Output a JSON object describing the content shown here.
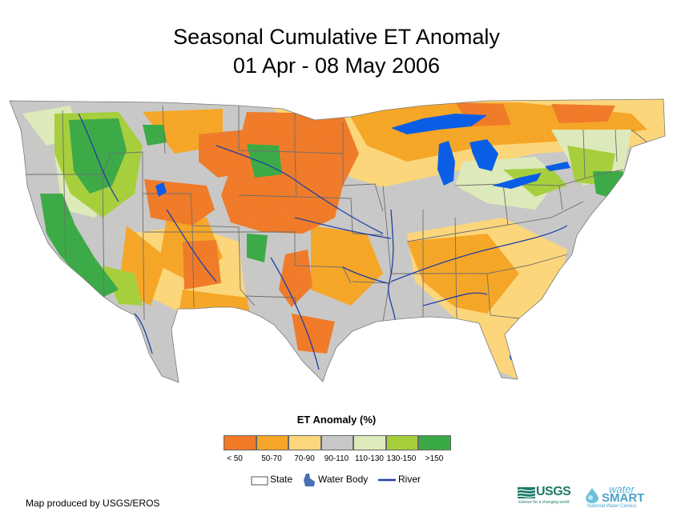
{
  "title": {
    "line1": "Seasonal Cumulative ET Anomaly",
    "line2": "01 Apr - 08 May 2006"
  },
  "legend": {
    "title": "ET Anomaly (%)",
    "classes": [
      {
        "label": "< 50",
        "color": "#f07a28"
      },
      {
        "label": "50-70",
        "color": "#f6a626"
      },
      {
        "label": "70-90",
        "color": "#fcd67a"
      },
      {
        "label": "90-110",
        "color": "#c8c8c8"
      },
      {
        "label": "110-130",
        "color": "#ddeabb"
      },
      {
        "label": "130-150",
        "color": "#a6cf3c"
      },
      {
        "label": ">150",
        "color": "#3aaa46"
      }
    ],
    "symbols": {
      "state": "State",
      "water_body": "Water Body",
      "river": "River"
    }
  },
  "colors": {
    "water": "#0a5ee6",
    "river": "#1f3fa6",
    "state_line": "#6e6e6e"
  },
  "credit": "Map produced by USGS/EROS",
  "logos": {
    "usgs": "USGS",
    "usgs_tagline": "science for a changing world",
    "watersmart_water": "water",
    "watersmart_smart": "SMART",
    "watersmart_sub": "National Water Census"
  }
}
